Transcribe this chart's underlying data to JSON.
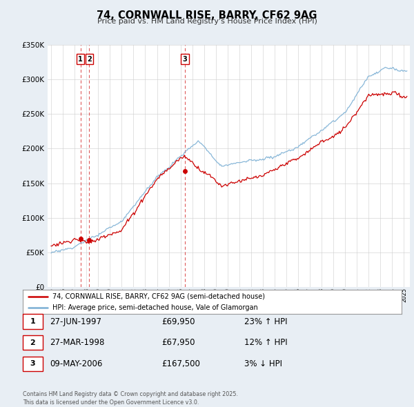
{
  "title": "74, CORNWALL RISE, BARRY, CF62 9AG",
  "subtitle": "Price paid vs. HM Land Registry's House Price Index (HPI)",
  "legend_property": "74, CORNWALL RISE, BARRY, CF62 9AG (semi-detached house)",
  "legend_hpi": "HPI: Average price, semi-detached house, Vale of Glamorgan",
  "property_color": "#cc0000",
  "hpi_color": "#7bafd4",
  "background_color": "#e8eef4",
  "plot_bg_color": "#ffffff",
  "grid_color": "#cccccc",
  "ylim": [
    0,
    350000
  ],
  "yticks": [
    0,
    50000,
    100000,
    150000,
    200000,
    250000,
    300000,
    350000
  ],
  "ytick_labels": [
    "£0",
    "£50K",
    "£100K",
    "£150K",
    "£200K",
    "£250K",
    "£300K",
    "£350K"
  ],
  "transactions": [
    {
      "num": 1,
      "date": "27-JUN-1997",
      "price": 69950,
      "price_str": "£69,950",
      "pct": "23%",
      "direction": "↑",
      "year": 1997.49
    },
    {
      "num": 2,
      "date": "27-MAR-1998",
      "price": 67950,
      "price_str": "£67,950",
      "pct": "12%",
      "direction": "↑",
      "year": 1998.24
    },
    {
      "num": 3,
      "date": "09-MAY-2006",
      "price": 167500,
      "price_str": "£167,500",
      "pct": "3%",
      "direction": "↓",
      "year": 2006.36
    }
  ],
  "footnote_line1": "Contains HM Land Registry data © Crown copyright and database right 2025.",
  "footnote_line2": "This data is licensed under the Open Government Licence v3.0."
}
